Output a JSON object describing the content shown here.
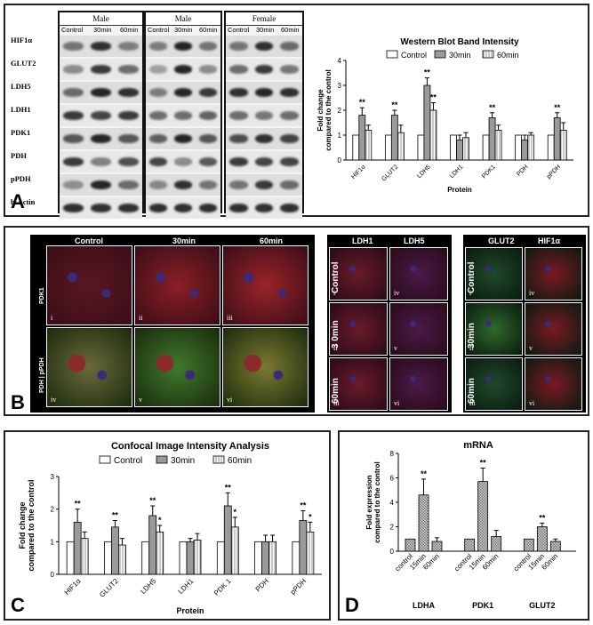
{
  "panels": {
    "a": "A",
    "b": "B",
    "c": "C",
    "d": "D"
  },
  "western_blot": {
    "groups": [
      {
        "sex": "Male",
        "lanes": [
          "Control",
          "30min",
          "60min"
        ]
      },
      {
        "sex": "Male",
        "lanes": [
          "Control",
          "30min",
          "60min"
        ]
      },
      {
        "sex": "Female",
        "lanes": [
          "Control",
          "30min",
          "60min"
        ]
      }
    ],
    "rows": [
      "HIF1α",
      "GLUT2",
      "LDH5",
      "LDH1",
      "PDK1",
      "PDH",
      "pPDH",
      "b-Actin"
    ]
  },
  "microscopy": {
    "col_headers": [
      "Control",
      "30min",
      "60min"
    ],
    "row_labels": [
      "PDK1",
      "PDH | pPDH"
    ],
    "tile_labels": [
      "i",
      "ii",
      "iii",
      "iv",
      "v",
      "vi"
    ],
    "ldh_headers": [
      "LDH1",
      "LDH5"
    ],
    "ldh_rows": [
      "Control",
      "3 0min",
      "60min"
    ],
    "ldh_tiles": [
      "i",
      "iv",
      "ii",
      "v",
      "iii",
      "vi"
    ],
    "glut_headers": [
      "GLUT2",
      "HIF1α"
    ],
    "glut_rows": [
      "Control",
      "30min",
      "60min"
    ],
    "glut_tiles": [
      "i",
      "iv",
      "ii",
      "v",
      "iii",
      "vi"
    ]
  },
  "colors": {
    "control": "#ffffff",
    "min30": "#9a9a9a",
    "min60": "#d8d8d8",
    "mrna": "#bdbdbd"
  },
  "chart_data": [
    {
      "id": "western",
      "type": "bar",
      "title": "Western Blot Band Intensity",
      "xlabel": "Protein",
      "ylabel": "Fold change compared to the control",
      "ylim": [
        0,
        4
      ],
      "yticks": [
        "0",
        "1",
        "2",
        "3",
        "4"
      ],
      "categories": [
        "HIF1α",
        "GLUT2",
        "LDH5",
        "LDH1",
        "PDK1",
        "PDH",
        "pPDH"
      ],
      "legend": [
        "Control",
        "30min",
        "60min"
      ],
      "series": [
        {
          "name": "Control",
          "values": [
            1,
            1,
            1,
            1,
            1,
            1,
            1
          ],
          "err": [
            0,
            0,
            0,
            0,
            0,
            0,
            0
          ]
        },
        {
          "name": "30min",
          "values": [
            1.8,
            1.8,
            3.0,
            0.8,
            1.7,
            0.8,
            1.7
          ],
          "err": [
            0.3,
            0.2,
            0.3,
            0.2,
            0.2,
            0.2,
            0.2
          ]
        },
        {
          "name": "60min",
          "values": [
            1.2,
            1.1,
            2.0,
            0.9,
            1.2,
            1.0,
            1.2
          ],
          "err": [
            0.2,
            0.3,
            0.3,
            0.2,
            0.2,
            0.1,
            0.3
          ]
        }
      ],
      "annotations": [
        {
          "category": "HIF1α",
          "series": "30min",
          "text": "**"
        },
        {
          "category": "GLUT2",
          "series": "30min",
          "text": "**"
        },
        {
          "category": "LDH5",
          "series": "30min",
          "text": "**"
        },
        {
          "category": "LDH5",
          "series": "60min",
          "text": "**"
        },
        {
          "category": "PDK1",
          "series": "30min",
          "text": "**"
        },
        {
          "category": "pPDH",
          "series": "30min",
          "text": "**"
        }
      ]
    },
    {
      "id": "confocal",
      "type": "bar",
      "title": "Confocal Image Intensity Analysis",
      "xlabel": "Protein",
      "ylabel": "Fold change compared to the control",
      "ylim": [
        0,
        3
      ],
      "yticks": [
        "0",
        "1",
        "2",
        "3"
      ],
      "categories": [
        "HIF1α",
        "GLUT2",
        "LDH5",
        "LDH1",
        "PDK 1",
        "PDH",
        "pPDH"
      ],
      "legend": [
        "Control",
        "30min",
        "60min"
      ],
      "series": [
        {
          "name": "Control",
          "values": [
            1,
            1,
            1,
            1,
            1,
            1,
            1
          ],
          "err": [
            0,
            0,
            0,
            0,
            0,
            0,
            0
          ]
        },
        {
          "name": "30min",
          "values": [
            1.6,
            1.45,
            1.8,
            1.0,
            2.1,
            1.0,
            1.65
          ],
          "err": [
            0.4,
            0.2,
            0.3,
            0.1,
            0.4,
            0.2,
            0.3
          ]
        },
        {
          "name": "60min",
          "values": [
            1.1,
            0.9,
            1.3,
            1.05,
            1.45,
            1.0,
            1.3
          ],
          "err": [
            0.2,
            0.2,
            0.2,
            0.2,
            0.3,
            0.2,
            0.3
          ]
        }
      ],
      "annotations": [
        {
          "category": "HIF1α",
          "series": "30min",
          "text": "**"
        },
        {
          "category": "GLUT2",
          "series": "30min",
          "text": "**"
        },
        {
          "category": "LDH5",
          "series": "30min",
          "text": "**"
        },
        {
          "category": "LDH5",
          "series": "60min",
          "text": "*"
        },
        {
          "category": "PDK 1",
          "series": "30min",
          "text": "**"
        },
        {
          "category": "PDK 1",
          "series": "60min",
          "text": "*"
        },
        {
          "category": "pPDH",
          "series": "30min",
          "text": "**"
        },
        {
          "category": "pPDH",
          "series": "60min",
          "text": "*"
        }
      ]
    },
    {
      "id": "mrna",
      "type": "bar",
      "title": "mRNA",
      "xlabel": "",
      "ylabel": "Fold expression compared to the control",
      "ylim": [
        0,
        8
      ],
      "yticks": [
        "0",
        "2",
        "4",
        "6",
        "8"
      ],
      "groups": [
        {
          "name": "LDHA",
          "labels": [
            "control",
            "15min",
            "60min"
          ],
          "values": [
            1.0,
            4.6,
            0.8
          ],
          "err": [
            0,
            1.3,
            0.3
          ],
          "annotations": [
            "",
            "**",
            ""
          ]
        },
        {
          "name": "PDK1",
          "labels": [
            "control",
            "15min",
            "60min"
          ],
          "values": [
            1.0,
            5.7,
            1.2
          ],
          "err": [
            0,
            1.1,
            0.5
          ],
          "annotations": [
            "",
            "**",
            ""
          ]
        },
        {
          "name": "GLUT2",
          "labels": [
            "control",
            "15min",
            "60min"
          ],
          "values": [
            1.0,
            2.0,
            0.8
          ],
          "err": [
            0,
            0.3,
            0.2
          ],
          "annotations": [
            "",
            "**",
            ""
          ]
        }
      ]
    }
  ]
}
